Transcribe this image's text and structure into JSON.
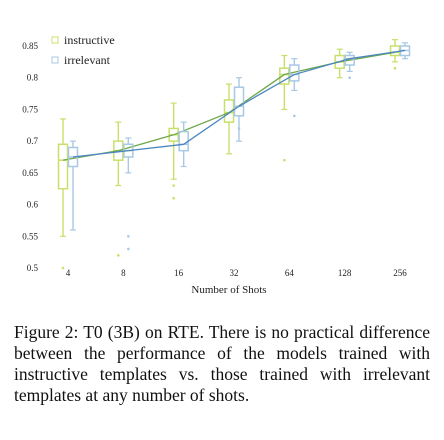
{
  "chart_data": {
    "type": "box",
    "title": "",
    "xlabel": "Number of Shots",
    "ylabel": "",
    "x_scale": "log2",
    "categories": [
      "4",
      "8",
      "16",
      "32",
      "64",
      "128",
      "256"
    ],
    "y_ticks": [
      "0.5",
      "0.55",
      "0.6",
      "0.65",
      "0.7",
      "0.75",
      "0.8",
      "0.85"
    ],
    "ylim": [
      0.48,
      0.87
    ],
    "grid": false,
    "legend_position": "top-left",
    "series": [
      {
        "name": "instructive",
        "color": "#c8e06a",
        "boxes": [
          {
            "x": 4,
            "min": 0.55,
            "q1": 0.625,
            "median": 0.67,
            "q3": 0.695,
            "max": 0.735
          },
          {
            "x": 8,
            "min": 0.63,
            "q1": 0.67,
            "median": 0.685,
            "q3": 0.7,
            "max": 0.73
          },
          {
            "x": 16,
            "min": 0.64,
            "q1": 0.7,
            "median": 0.71,
            "q3": 0.72,
            "max": 0.76
          },
          {
            "x": 32,
            "min": 0.68,
            "q1": 0.73,
            "median": 0.745,
            "q3": 0.765,
            "max": 0.79
          },
          {
            "x": 64,
            "min": 0.75,
            "q1": 0.79,
            "median": 0.805,
            "q3": 0.815,
            "max": 0.835
          },
          {
            "x": 128,
            "min": 0.8,
            "q1": 0.815,
            "median": 0.825,
            "q3": 0.835,
            "max": 0.845
          },
          {
            "x": 256,
            "min": 0.825,
            "q1": 0.835,
            "median": 0.84,
            "q3": 0.85,
            "max": 0.86
          }
        ],
        "outliers": [
          [
            4,
            0.5
          ],
          [
            8,
            0.52
          ],
          [
            16,
            0.61
          ],
          [
            16,
            0.63
          ],
          [
            64,
            0.67
          ],
          [
            256,
            0.815
          ]
        ]
      },
      {
        "name": "irrelevant",
        "color": "#a8c8e4",
        "boxes": [
          {
            "x": 4,
            "min": 0.56,
            "q1": 0.66,
            "median": 0.675,
            "q3": 0.69,
            "max": 0.7
          },
          {
            "x": 8,
            "min": 0.65,
            "q1": 0.675,
            "median": 0.685,
            "q3": 0.695,
            "max": 0.705
          },
          {
            "x": 16,
            "min": 0.66,
            "q1": 0.685,
            "median": 0.695,
            "q3": 0.715,
            "max": 0.73
          },
          {
            "x": 32,
            "min": 0.7,
            "q1": 0.74,
            "median": 0.755,
            "q3": 0.785,
            "max": 0.8
          },
          {
            "x": 64,
            "min": 0.78,
            "q1": 0.795,
            "median": 0.805,
            "q3": 0.82,
            "max": 0.83
          },
          {
            "x": 128,
            "min": 0.81,
            "q1": 0.82,
            "median": 0.83,
            "q3": 0.835,
            "max": 0.84
          },
          {
            "x": 256,
            "min": 0.83,
            "q1": 0.835,
            "median": 0.843,
            "q3": 0.85,
            "max": 0.855
          }
        ],
        "outliers": [
          [
            8,
            0.55
          ],
          [
            8,
            0.53
          ],
          [
            32,
            0.72
          ],
          [
            64,
            0.74
          ],
          [
            128,
            0.8
          ]
        ]
      }
    ]
  },
  "caption": "Figure 2: T0 (3B) on RTE. There is no practical difference between the performance of the models trained with instructive templates vs. those trained with irrelevant templates at any number of shots."
}
